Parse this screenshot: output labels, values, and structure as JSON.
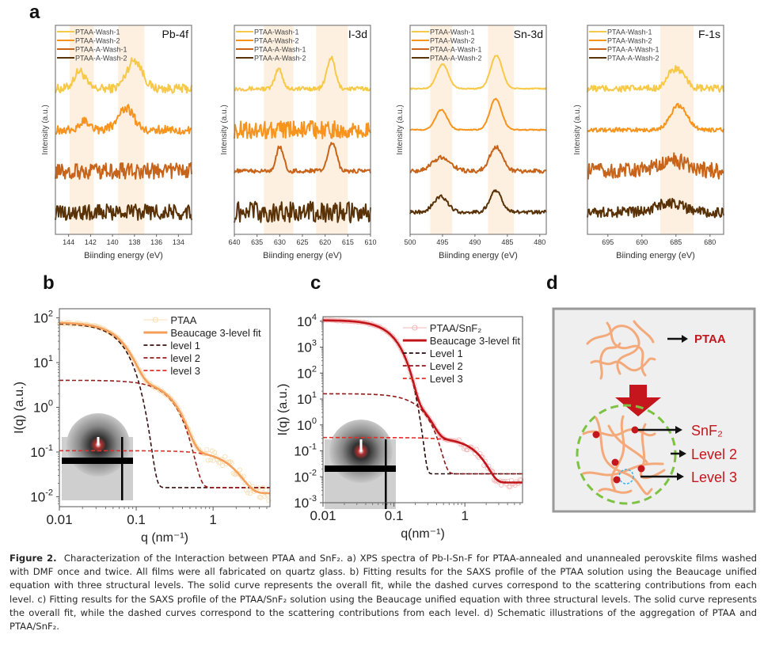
{
  "figure": {
    "panel_letters": {
      "a": "a",
      "b": "b",
      "c": "c",
      "d": "d"
    },
    "caption": {
      "label": "Figure 2.",
      "text": "Characterization of the Interaction between PTAA and SnF₂. a) XPS spectra of Pb-I-Sn-F for PTAA-annealed and unannealed perovskite films washed with DMF once and twice. All films were all fabricated on quartz glass. b) Fitting results for the SAXS profile of the PTAA solution using the Beaucage unified equation with three structural levels. The solid curve represents the overall fit, while the dashed curves correspond to the scattering contributions from each level. c) Fitting results for the SAXS profile of the PTAA/SnF₂ solution using the Beaucage unified equation with three structural levels. The solid curve represents the overall fit, while the dashed curves correspond to the scattering contributions from each level. d) Schematic illustrations of the aggregation of PTAA and PTAA/SnF₂."
    },
    "schematic": {
      "top_label": "PTAA",
      "labels": [
        "SnF₂",
        "Level 2",
        "Level 3"
      ],
      "colors": {
        "chain": "#f4a97a",
        "dot": "#c4161c",
        "label": "#c4161c",
        "circle": "#7dc242",
        "arrow": "#c4161c",
        "small_circle": "#3cb4e6",
        "bg": "#efefef",
        "frame": "#999999"
      }
    }
  },
  "chart_data": [
    {
      "id": "a-pb4f",
      "type": "line",
      "title": "Pb-4f",
      "xlabel": "Biinding energy (eV)",
      "ylabel": "Intensity (a.u.)",
      "xlim": [
        145.2,
        132.8
      ],
      "x_reversed": true,
      "xticks": [
        144,
        142,
        140,
        138,
        136,
        134
      ],
      "yticks": [],
      "shaded_regions": [
        [
          143.9,
          141.7
        ],
        [
          139.5,
          137.1
        ]
      ],
      "legend": {
        "placement": "top-left",
        "entries": [
          "PTAA-Wash-1",
          "PTAA-Wash-2",
          "PTAA-A-Wash-1",
          "PTAA-A-Wash-2"
        ]
      },
      "series": [
        {
          "name": "PTAA-Wash-1",
          "color": "#f7c948",
          "offset": 3,
          "noise": 0.25,
          "peaks": [
            {
              "x": 143.0,
              "h": 0.8,
              "w": 0.5
            },
            {
              "x": 138.0,
              "h": 1.3,
              "w": 0.7
            }
          ]
        },
        {
          "name": "PTAA-Wash-2",
          "color": "#f7941d",
          "offset": 2,
          "noise": 0.25,
          "peaks": [
            {
              "x": 142.5,
              "h": 0.4,
              "w": 0.5
            },
            {
              "x": 138.8,
              "h": 1.0,
              "w": 0.7
            }
          ]
        },
        {
          "name": "PTAA-A-Wash-1",
          "color": "#c8641a",
          "offset": 1,
          "noise": 0.45,
          "peaks": []
        },
        {
          "name": "PTAA-A-Wash-2",
          "color": "#5a3208",
          "offset": 0,
          "noise": 0.45,
          "peaks": []
        }
      ]
    },
    {
      "id": "a-i3d",
      "type": "line",
      "title": "I-3d",
      "xlabel": "Biinding energy (eV)",
      "ylabel": "Intensity (a.u.)",
      "xlim": [
        640,
        610
      ],
      "x_reversed": true,
      "xticks": [
        640,
        635,
        630,
        625,
        620,
        615,
        610
      ],
      "yticks": [],
      "shaded_regions": [
        [
          633.5,
          627
        ],
        [
          622,
          615
        ]
      ],
      "legend": {
        "placement": "top-left",
        "entries": [
          "PTAA-Wash-1",
          "PTAA-Wash-2",
          "PTAA-A-Wash-1",
          "PTAA-A-Wash-2"
        ]
      },
      "series": [
        {
          "name": "PTAA-Wash-1",
          "color": "#f7c948",
          "offset": 3,
          "noise": 0.12,
          "peaks": [
            {
              "x": 630.2,
              "h": 0.9,
              "w": 0.8
            },
            {
              "x": 618.7,
              "h": 1.4,
              "w": 0.9
            }
          ]
        },
        {
          "name": "PTAA-Wash-2",
          "color": "#f7941d",
          "offset": 2,
          "noise": 0.5,
          "peaks": []
        },
        {
          "name": "PTAA-A-Wash-1",
          "color": "#c8641a",
          "offset": 1,
          "noise": 0.12,
          "peaks": [
            {
              "x": 630.0,
              "h": 1.1,
              "w": 0.8
            },
            {
              "x": 618.4,
              "h": 1.3,
              "w": 0.9
            }
          ]
        },
        {
          "name": "PTAA-A-Wash-2",
          "color": "#5a3208",
          "offset": 0,
          "noise": 0.6,
          "peaks": []
        }
      ]
    },
    {
      "id": "a-sn3d",
      "type": "line",
      "title": "Sn-3d",
      "xlabel": "Biinding energy (eV)",
      "ylabel": "Intensity (a.u.)",
      "xlim": [
        500,
        479
      ],
      "x_reversed": true,
      "xticks": [
        500,
        495,
        490,
        485,
        480
      ],
      "yticks": [],
      "shaded_regions": [
        [
          496.9,
          493.5
        ],
        [
          488,
          484
        ]
      ],
      "legend": {
        "placement": "top-left",
        "entries": [
          "PTAA-Wash-1",
          "PTAA-Wash-2",
          "PTAA-A-Wash-1",
          "PTAA-A-Wash-2"
        ]
      },
      "series": [
        {
          "name": "PTAA-Wash-1",
          "color": "#f7c948",
          "offset": 3,
          "noise": 0.03,
          "peaks": [
            {
              "x": 495.0,
              "h": 1.1,
              "w": 0.9
            },
            {
              "x": 486.7,
              "h": 1.5,
              "w": 0.9
            }
          ]
        },
        {
          "name": "PTAA-Wash-2",
          "color": "#f7941d",
          "offset": 2,
          "noise": 0.03,
          "peaks": [
            {
              "x": 495.2,
              "h": 0.9,
              "w": 0.9
            },
            {
              "x": 486.8,
              "h": 1.4,
              "w": 0.9
            }
          ]
        },
        {
          "name": "PTAA-A-Wash-1",
          "color": "#c8641a",
          "offset": 1,
          "noise": 0.12,
          "peaks": [
            {
              "x": 495.2,
              "h": 0.6,
              "w": 1.4
            },
            {
              "x": 486.7,
              "h": 1.1,
              "w": 1.0
            }
          ]
        },
        {
          "name": "PTAA-A-Wash-2",
          "color": "#5a3208",
          "offset": 0,
          "noise": 0.1,
          "peaks": [
            {
              "x": 495.3,
              "h": 0.7,
              "w": 1.1
            },
            {
              "x": 486.8,
              "h": 1.0,
              "w": 0.9
            }
          ]
        }
      ]
    },
    {
      "id": "a-f1s",
      "type": "line",
      "title": "F-1s",
      "xlabel": "Biinding energy (eV)",
      "ylabel": "Intensity (a.u.)",
      "xlim": [
        698,
        678
      ],
      "x_reversed": true,
      "xticks": [
        695,
        690,
        685,
        680
      ],
      "yticks": [],
      "shaded_regions": [
        [
          687.3,
          682.4
        ]
      ],
      "legend": {
        "placement": "top-left",
        "entries": [
          "PTAA-Wash-1",
          "PTAA-Wash-2",
          "PTAA-A-Wash-1",
          "PTAA-A-Wash-2"
        ]
      },
      "series": [
        {
          "name": "PTAA-Wash-1",
          "color": "#f7c948",
          "offset": 3,
          "noise": 0.2,
          "peaks": [
            {
              "x": 685.0,
              "h": 0.9,
              "w": 1.2
            }
          ]
        },
        {
          "name": "PTAA-Wash-2",
          "color": "#f7941d",
          "offset": 2,
          "noise": 0.12,
          "peaks": [
            {
              "x": 684.6,
              "h": 1.1,
              "w": 1.2
            }
          ]
        },
        {
          "name": "PTAA-A-Wash-1",
          "color": "#c8641a",
          "offset": 1,
          "noise": 0.45,
          "peaks": [
            {
              "x": 685.5,
              "h": 0.5,
              "w": 2.0
            }
          ]
        },
        {
          "name": "PTAA-A-Wash-2",
          "color": "#5a3208",
          "offset": 0,
          "noise": 0.3,
          "peaks": [
            {
              "x": 686.0,
              "h": 0.4,
              "w": 2.0
            }
          ]
        }
      ]
    },
    {
      "id": "b",
      "type": "line",
      "title": "",
      "xlabel": "q (nm⁻¹)",
      "ylabel": "I(q) (a.u.)",
      "xscale": "log",
      "yscale": "log",
      "xlim": [
        0.01,
        5.5
      ],
      "ylim": [
        0.006,
        160
      ],
      "xticks": [
        {
          "v": 0.01,
          "label": "0.01"
        },
        {
          "v": 0.1,
          "label": "0.1"
        },
        {
          "v": 1,
          "label": "1"
        }
      ],
      "yticks": [
        {
          "v": 100,
          "base": "10",
          "exp": "2"
        },
        {
          "v": 10,
          "base": "10",
          "exp": "1"
        },
        {
          "v": 1,
          "base": "10",
          "exp": "0"
        },
        {
          "v": 0.1,
          "base": "10",
          "exp": "-1"
        },
        {
          "v": 0.01,
          "base": "10",
          "exp": "-2"
        }
      ],
      "legend": {
        "placement": "top-right",
        "entries": [
          "PTAA",
          "Beaucage 3-level fit",
          "level 1",
          "level 2",
          "level 3"
        ]
      },
      "series": [
        {
          "name": "PTAA",
          "style": "markers",
          "color": "#f8dcb0",
          "G": 0,
          "Rg": 0,
          "bg": 0
        },
        {
          "name": "Beaucage 3-level fit",
          "style": "solid",
          "color": "#f5a05a",
          "components": [
            1,
            2,
            3
          ]
        },
        {
          "name": "level 1",
          "style": "dashed",
          "color": "#3a1010",
          "G": 75,
          "Rg": 28,
          "bg": 0.016
        },
        {
          "name": "level 2",
          "style": "dashed",
          "color": "#9b1b1b",
          "G": 4.0,
          "Rg": 6.2,
          "bg": 0.016
        },
        {
          "name": "level 3",
          "style": "dashed",
          "color": "#e0302a",
          "G": 0.095,
          "Rg": 1.0,
          "bg": 0.012
        }
      ],
      "inset": "2D SAXS detector image (grey)"
    },
    {
      "id": "c",
      "type": "line",
      "title": "",
      "xlabel": "q(nm⁻¹)",
      "ylabel": "I(q) (a.u.)",
      "xscale": "log",
      "yscale": "log",
      "xlim": [
        0.01,
        6.5
      ],
      "ylim": [
        0.001,
        15000
      ],
      "xticks": [
        {
          "v": 0.01,
          "label": "0.01"
        },
        {
          "v": 0.1,
          "label": "0.1"
        },
        {
          "v": 1,
          "label": "1"
        }
      ],
      "yticks": [
        {
          "v": 10000,
          "base": "10",
          "exp": "4"
        },
        {
          "v": 1000,
          "base": "10",
          "exp": "3"
        },
        {
          "v": 100,
          "base": "10",
          "exp": "2"
        },
        {
          "v": 10,
          "base": "10",
          "exp": "1"
        },
        {
          "v": 1,
          "base": "10",
          "exp": "0"
        },
        {
          "v": 0.1,
          "base": "10",
          "exp": "-1"
        },
        {
          "v": 0.01,
          "base": "10",
          "exp": "-2"
        },
        {
          "v": 0.001,
          "base": "10",
          "exp": "-3"
        }
      ],
      "legend": {
        "placement": "top-right",
        "entries": [
          "PTAA/SnF₂",
          "Beaucage 3-level fit",
          "Level 1",
          "Level 2",
          "Level 3"
        ]
      },
      "series": [
        {
          "name": "PTAA/SnF₂",
          "style": "markers",
          "color": "#f4b6b6"
        },
        {
          "name": "Beaucage 3-level fit",
          "style": "solid",
          "color": "#c0141a",
          "components": [
            1,
            2,
            3
          ]
        },
        {
          "name": "Level 1",
          "style": "dashed",
          "color": "#2a0a0a",
          "G": 11000,
          "Rg": 22,
          "bg": 0.013
        },
        {
          "name": "Level 2",
          "style": "dashed",
          "color": "#8f1a1a",
          "G": 16,
          "Rg": 8.5,
          "bg": 0.013
        },
        {
          "name": "Level 3",
          "style": "dashed",
          "color": "#e0302a",
          "G": 0.32,
          "Rg": 1.4,
          "bg": 0.006
        }
      ],
      "inset": "2D SAXS detector image (red hot)"
    }
  ]
}
